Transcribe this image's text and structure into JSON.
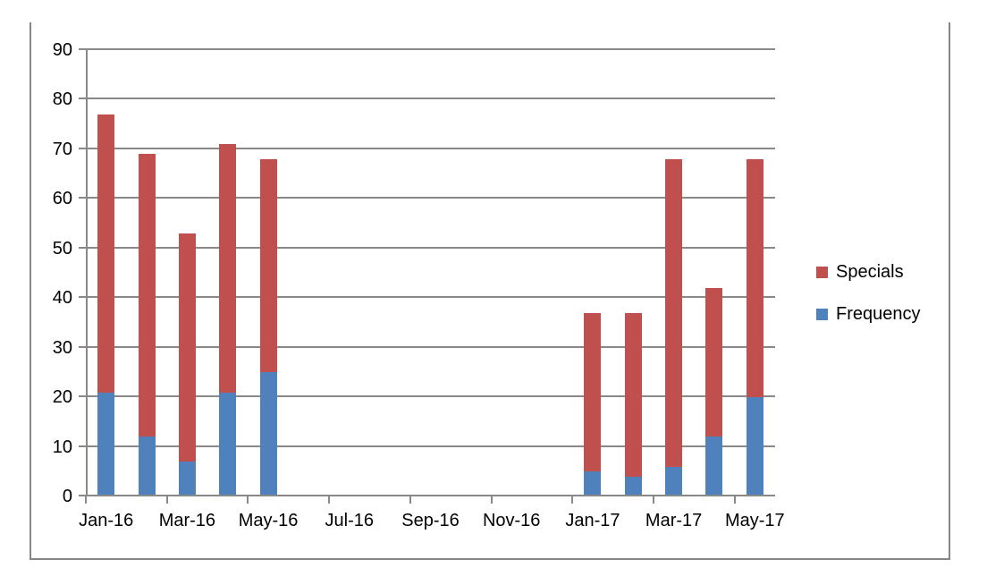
{
  "chart_data": {
    "type": "bar",
    "stacked": true,
    "title": "",
    "categories": [
      "Jan-16",
      "Feb-16",
      "Mar-16",
      "Apr-16",
      "May-16",
      "Jun-16",
      "Jul-16",
      "Aug-16",
      "Sep-16",
      "Oct-16",
      "Nov-16",
      "Dec-16",
      "Jan-17",
      "Feb-17",
      "Mar-17",
      "Apr-17",
      "May-17"
    ],
    "series": [
      {
        "name": "Frequency",
        "color": "#4f81bd",
        "values": [
          21,
          12,
          7,
          21,
          25,
          0,
          0,
          0,
          0,
          0,
          0,
          0,
          5,
          4,
          6,
          12,
          20
        ]
      },
      {
        "name": "Specials",
        "color": "#c0504d",
        "values": [
          56,
          57,
          46,
          50,
          43,
          0,
          0,
          0,
          0,
          0,
          0,
          0,
          32,
          33,
          62,
          30,
          48
        ]
      }
    ],
    "stack_totals": [
      77,
      69,
      53,
      71,
      68,
      0,
      0,
      0,
      0,
      0,
      0,
      0,
      37,
      37,
      68,
      42,
      68
    ],
    "y_axis": {
      "min": 0,
      "max": 90,
      "tick_step": 10,
      "tick_labels": [
        "0",
        "10",
        "20",
        "30",
        "40",
        "50",
        "60",
        "70",
        "80",
        "90"
      ]
    },
    "x_axis": {
      "label_every": 2,
      "tick_labels": [
        "Jan-16",
        "Mar-16",
        "May-16",
        "Jul-16",
        "Sep-16",
        "Nov-16",
        "Jan-17",
        "Mar-17",
        "May-17"
      ]
    },
    "legend": {
      "position": "right",
      "entries": [
        {
          "label": "Specials",
          "color": "#c0504d"
        },
        {
          "label": "Frequency",
          "color": "#4f81bd"
        }
      ]
    },
    "grid": true,
    "colors": {
      "gridline": "#898989",
      "axis": "#898989",
      "frame_border": "#868686",
      "text": "#000000",
      "background": "#ffffff"
    }
  }
}
